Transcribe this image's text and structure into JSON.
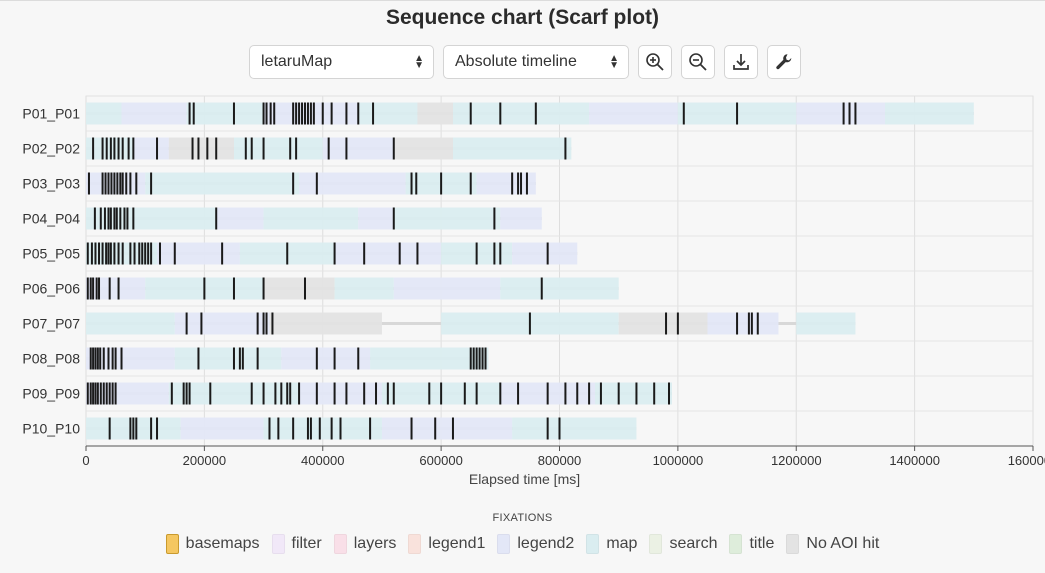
{
  "title": "Sequence chart (Scarf plot)",
  "controls": {
    "stimulus_select": "letaruMap",
    "timeline_select": "Absolute timeline",
    "icons": [
      "zoom-in-icon",
      "zoom-out-icon",
      "download-icon",
      "wrench-icon"
    ]
  },
  "legend_title": "FIXATIONS",
  "chart_data": {
    "type": "scarf",
    "title": "Sequence chart (Scarf plot)",
    "xlabel": "Elapsed time [ms]",
    "xlim": [
      0,
      1600000
    ],
    "xticks": [
      0,
      200000,
      400000,
      600000,
      800000,
      1000000,
      1200000,
      1400000,
      1600000
    ],
    "xtick_labels": [
      "0",
      "200000",
      "400000",
      "600000",
      "800000",
      "1000000",
      "1200000",
      "1400000",
      "1600000"
    ],
    "grid": true,
    "legend_position": "bottom",
    "aois": [
      {
        "name": "basemaps",
        "color": "#f5c761"
      },
      {
        "name": "filter",
        "color": "#f1e8f8"
      },
      {
        "name": "layers",
        "color": "#f9dfe8"
      },
      {
        "name": "legend1",
        "color": "#f9e2dc"
      },
      {
        "name": "legend2",
        "color": "#e3e7f7"
      },
      {
        "name": "map",
        "color": "#daedf0"
      },
      {
        "name": "search",
        "color": "#ebf1e4"
      },
      {
        "name": "title",
        "color": "#deeddb"
      },
      {
        "name": "No AOI hit",
        "color": "#e3e3e3"
      }
    ],
    "participants": [
      {
        "name": "P01_P01",
        "end": 1500000,
        "spans": [
          [
            0,
            60000,
            "map"
          ],
          [
            60000,
            170000,
            "legend2"
          ],
          [
            170000,
            300000,
            "map"
          ],
          [
            300000,
            460000,
            "legend2"
          ],
          [
            460000,
            560000,
            "map"
          ],
          [
            560000,
            620000,
            "No AOI hit"
          ],
          [
            620000,
            850000,
            "map"
          ],
          [
            850000,
            1000000,
            "legend2"
          ],
          [
            1000000,
            1200000,
            "map"
          ],
          [
            1200000,
            1350000,
            "legend2"
          ],
          [
            1350000,
            1500000,
            "map"
          ]
        ],
        "events": [
          175000,
          182000,
          250000,
          300000,
          305000,
          312000,
          318000,
          350000,
          355000,
          360000,
          365000,
          370000,
          375000,
          380000,
          385000,
          400000,
          415000,
          440000,
          460000,
          485000,
          650000,
          700000,
          760000,
          1010000,
          1100000,
          1280000,
          1290000,
          1300000
        ]
      },
      {
        "name": "P02_P02",
        "end": 820000,
        "spans": [
          [
            0,
            80000,
            "map"
          ],
          [
            80000,
            140000,
            "legend2"
          ],
          [
            140000,
            250000,
            "No AOI hit"
          ],
          [
            250000,
            400000,
            "map"
          ],
          [
            400000,
            520000,
            "legend2"
          ],
          [
            520000,
            620000,
            "No AOI hit"
          ],
          [
            620000,
            820000,
            "map"
          ]
        ],
        "events": [
          12000,
          28000,
          35000,
          42000,
          48000,
          55000,
          62000,
          72000,
          80000,
          120000,
          180000,
          190000,
          205000,
          220000,
          270000,
          280000,
          300000,
          345000,
          355000,
          410000,
          440000,
          520000,
          810000
        ]
      },
      {
        "name": "P03_P03",
        "end": 760000,
        "spans": [
          [
            0,
            100000,
            "legend2"
          ],
          [
            100000,
            360000,
            "map"
          ],
          [
            360000,
            540000,
            "legend2"
          ],
          [
            540000,
            660000,
            "map"
          ],
          [
            660000,
            760000,
            "legend2"
          ]
        ],
        "events": [
          5000,
          28000,
          33000,
          38000,
          43000,
          48000,
          53000,
          58000,
          62000,
          68000,
          75000,
          85000,
          110000,
          350000,
          390000,
          550000,
          558000,
          600000,
          650000,
          720000,
          730000,
          735000,
          745000
        ]
      },
      {
        "name": "P04_P04",
        "end": 770000,
        "spans": [
          [
            0,
            220000,
            "map"
          ],
          [
            220000,
            300000,
            "legend2"
          ],
          [
            300000,
            460000,
            "map"
          ],
          [
            460000,
            520000,
            "legend2"
          ],
          [
            520000,
            700000,
            "map"
          ],
          [
            700000,
            770000,
            "legend2"
          ]
        ],
        "events": [
          15000,
          25000,
          32000,
          38000,
          42000,
          48000,
          52000,
          58000,
          65000,
          70000,
          80000,
          220000,
          520000,
          690000
        ]
      },
      {
        "name": "P05_P05",
        "end": 830000,
        "spans": [
          [
            0,
            120000,
            "map"
          ],
          [
            120000,
            260000,
            "legend2"
          ],
          [
            260000,
            420000,
            "map"
          ],
          [
            420000,
            600000,
            "legend2"
          ],
          [
            600000,
            720000,
            "map"
          ],
          [
            720000,
            830000,
            "legend2"
          ]
        ],
        "events": [
          3000,
          10000,
          16000,
          22000,
          28000,
          34000,
          38000,
          42000,
          48000,
          55000,
          62000,
          75000,
          82000,
          90000,
          95000,
          100000,
          105000,
          110000,
          125000,
          150000,
          230000,
          340000,
          420000,
          470000,
          530000,
          560000,
          660000,
          690000,
          700000,
          780000
        ]
      },
      {
        "name": "P06_P06",
        "end": 900000,
        "spans": [
          [
            0,
            100000,
            "legend2"
          ],
          [
            100000,
            300000,
            "map"
          ],
          [
            300000,
            420000,
            "No AOI hit"
          ],
          [
            420000,
            520000,
            "map"
          ],
          [
            520000,
            700000,
            "legend2"
          ],
          [
            700000,
            900000,
            "map"
          ]
        ],
        "events": [
          3000,
          8000,
          12000,
          18000,
          22000,
          40000,
          55000,
          200000,
          250000,
          300000,
          370000,
          770000
        ]
      },
      {
        "name": "P07_P07",
        "end": 1300000,
        "spans": [
          [
            0,
            150000,
            "map"
          ],
          [
            150000,
            310000,
            "legend2"
          ],
          [
            310000,
            500000,
            "No AOI hit"
          ],
          [
            600000,
            900000,
            "map"
          ],
          [
            900000,
            1050000,
            "No AOI hit"
          ],
          [
            1050000,
            1170000,
            "legend2"
          ],
          [
            1200000,
            1300000,
            "map"
          ]
        ],
        "events": [
          170000,
          195000,
          290000,
          300000,
          305000,
          315000,
          750000,
          980000,
          1000000,
          1100000,
          1120000,
          1125000,
          1135000
        ]
      },
      {
        "name": "P08_P08",
        "end": 680000,
        "spans": [
          [
            0,
            150000,
            "legend2"
          ],
          [
            150000,
            330000,
            "map"
          ],
          [
            330000,
            480000,
            "legend2"
          ],
          [
            480000,
            680000,
            "map"
          ]
        ],
        "events": [
          8000,
          12000,
          16000,
          20000,
          24000,
          30000,
          38000,
          45000,
          50000,
          60000,
          190000,
          250000,
          260000,
          265000,
          290000,
          390000,
          420000,
          460000,
          650000,
          655000,
          660000,
          665000,
          670000,
          675000
        ]
      },
      {
        "name": "P09_P09",
        "end": 990000,
        "spans": [
          [
            0,
            140000,
            "legend2"
          ],
          [
            140000,
            360000,
            "map"
          ],
          [
            360000,
            500000,
            "legend2"
          ],
          [
            500000,
            700000,
            "map"
          ],
          [
            700000,
            860000,
            "legend2"
          ],
          [
            860000,
            990000,
            "map"
          ]
        ],
        "events": [
          3000,
          8000,
          12000,
          16000,
          20000,
          25000,
          30000,
          35000,
          40000,
          45000,
          50000,
          145000,
          165000,
          170000,
          175000,
          210000,
          280000,
          300000,
          320000,
          330000,
          340000,
          345000,
          360000,
          390000,
          420000,
          440000,
          470000,
          490000,
          510000,
          520000,
          580000,
          600000,
          640000,
          660000,
          700000,
          730000,
          780000,
          810000,
          830000,
          850000,
          870000,
          900000,
          930000,
          960000,
          985000
        ]
      },
      {
        "name": "P10_P10",
        "end": 930000,
        "spans": [
          [
            0,
            160000,
            "map"
          ],
          [
            160000,
            300000,
            "legend2"
          ],
          [
            300000,
            500000,
            "map"
          ],
          [
            500000,
            720000,
            "legend2"
          ],
          [
            720000,
            930000,
            "map"
          ]
        ],
        "events": [
          40000,
          75000,
          80000,
          85000,
          110000,
          120000,
          310000,
          325000,
          350000,
          375000,
          380000,
          395000,
          415000,
          430000,
          480000,
          550000,
          590000,
          620000,
          780000,
          800000
        ]
      }
    ]
  }
}
